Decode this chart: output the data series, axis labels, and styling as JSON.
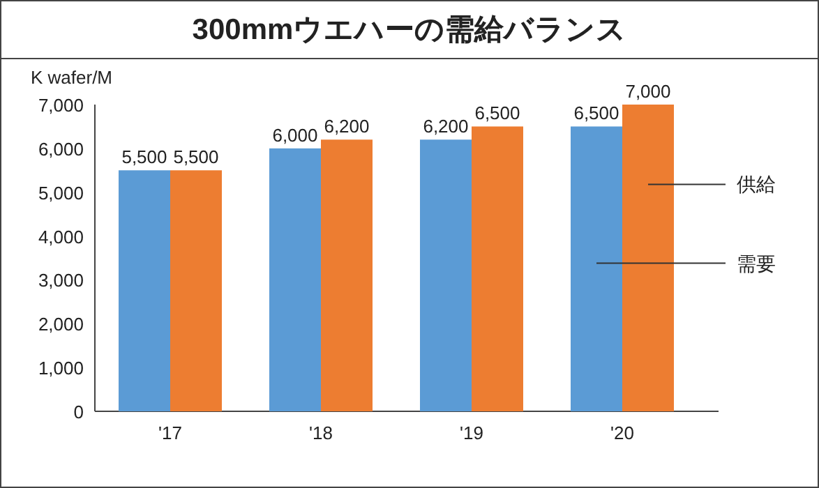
{
  "chart_data": {
    "type": "bar",
    "title": "300mmウエハーの需給バランス",
    "ylabel": "K wafer/M",
    "categories": [
      "'17",
      "'18",
      "'19",
      "'20"
    ],
    "series": [
      {
        "name": "需要",
        "color": "#5b9bd5",
        "values": [
          5500,
          6000,
          6200,
          6500
        ],
        "value_labels": [
          "5,500",
          "6,000",
          "6,200",
          "6,500"
        ]
      },
      {
        "name": "供給",
        "color": "#ed7d31",
        "values": [
          5500,
          6200,
          6500,
          7000
        ],
        "value_labels": [
          "5,500",
          "6,200",
          "6,500",
          "7,000"
        ]
      }
    ],
    "ylim": [
      0,
      7000
    ],
    "yticks": [
      {
        "value": 0,
        "label": "0"
      },
      {
        "value": 1000,
        "label": "1,000"
      },
      {
        "value": 2000,
        "label": "2,000"
      },
      {
        "value": 3000,
        "label": "3,000"
      },
      {
        "value": 4000,
        "label": "4,000"
      },
      {
        "value": 5000,
        "label": "5,000"
      },
      {
        "value": 6000,
        "label": "6,000"
      },
      {
        "value": 7000,
        "label": "7,000"
      }
    ],
    "legend": false
  }
}
